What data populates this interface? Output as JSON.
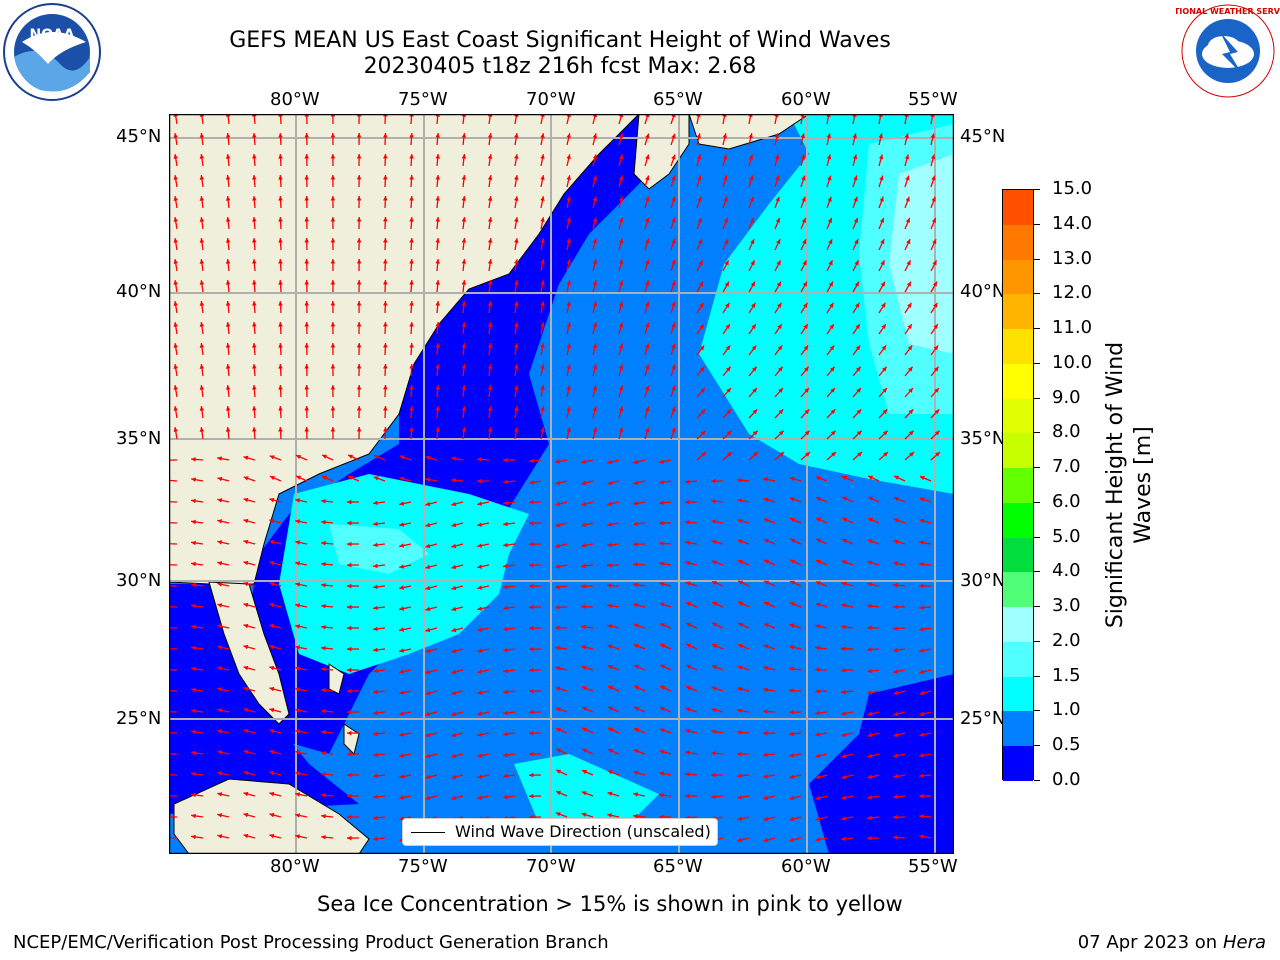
{
  "title": {
    "line1": "GEFS MEAN US East Coast Significant Height of Wind Waves",
    "line2": "20230405 t18z 216h fcst   Max: 2.68"
  },
  "axes": {
    "lon_labels": [
      "80°W",
      "75°W",
      "70°W",
      "65°W",
      "60°W",
      "55°W"
    ],
    "lat_labels": [
      "45°N",
      "40°N",
      "35°N",
      "30°N",
      "25°N"
    ]
  },
  "legend": {
    "label": "Wind Wave Direction (unscaled)"
  },
  "colorbar": {
    "title_line1": "Significant Height of Wind",
    "title_line2": "Waves [m]",
    "ticks": [
      "15.0",
      "14.0",
      "13.0",
      "12.0",
      "11.0",
      "10.0",
      "9.0",
      "8.0",
      "7.0",
      "6.0",
      "5.0",
      "4.0",
      "3.0",
      "2.0",
      "1.5",
      "1.0",
      "0.5",
      "0.0"
    ],
    "colors": [
      "#ff0000",
      "#ff2800",
      "#ff5000",
      "#ff7800",
      "#ff9600",
      "#ffb400",
      "#ffe100",
      "#ffff00",
      "#e1ff00",
      "#c8ff00",
      "#64ff00",
      "#00ff00",
      "#00dd3c",
      "#50ff78",
      "#a0ffff",
      "#50ffff",
      "#00ffff",
      "#0080ff",
      "#0000ff"
    ]
  },
  "note": "Sea Ice Concentration > 15% is shown in pink to yellow",
  "footer": {
    "left": "NCEP/EMC/Verification Post Processing Product Generation Branch",
    "right_prefix": "07 Apr 2023 on ",
    "right_host": "Hera"
  },
  "logos": {
    "noara": "NOAA",
    "nws": "NATIONAL WEATHER SERVICE"
  }
}
